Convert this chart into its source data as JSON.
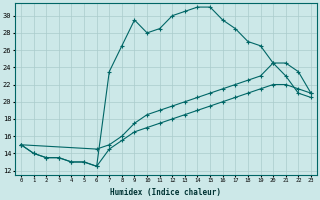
{
  "xlabel": "Humidex (Indice chaleur)",
  "bg_color": "#cce8e8",
  "grid_color": "#aacccc",
  "line_color": "#006666",
  "xlim": [
    -0.5,
    23.5
  ],
  "ylim": [
    11.5,
    31.5
  ],
  "yticks": [
    12,
    14,
    16,
    18,
    20,
    22,
    24,
    26,
    28,
    30
  ],
  "xticks": [
    0,
    1,
    2,
    3,
    4,
    5,
    6,
    7,
    8,
    9,
    10,
    11,
    12,
    13,
    14,
    15,
    16,
    17,
    18,
    19,
    20,
    21,
    22,
    23
  ],
  "line1_x": [
    0,
    1,
    2,
    3,
    4,
    5,
    6,
    7,
    8,
    9,
    10,
    11,
    12,
    13,
    14,
    15,
    16,
    17,
    18,
    19,
    20,
    21,
    22,
    23
  ],
  "line1_y": [
    15.0,
    14.0,
    13.5,
    13.5,
    13.0,
    13.0,
    12.5,
    23.5,
    26.5,
    29.5,
    28.0,
    28.5,
    30.0,
    30.5,
    31.0,
    31.0,
    29.5,
    28.5,
    27.0,
    26.5,
    24.5,
    23.0,
    21.0,
    20.5
  ],
  "line2_x": [
    0,
    6,
    7,
    8,
    9,
    10,
    11,
    12,
    13,
    14,
    15,
    16,
    17,
    18,
    19,
    20,
    21,
    22,
    23
  ],
  "line2_y": [
    15.0,
    14.5,
    15.0,
    16.0,
    17.5,
    18.5,
    19.0,
    19.5,
    20.0,
    20.5,
    21.0,
    21.5,
    22.0,
    22.5,
    23.0,
    24.5,
    24.5,
    23.5,
    21.0
  ],
  "line3_x": [
    0,
    1,
    2,
    3,
    4,
    5,
    6,
    7,
    8,
    9,
    10,
    11,
    12,
    13,
    14,
    15,
    16,
    17,
    18,
    19,
    20,
    21,
    22,
    23
  ],
  "line3_y": [
    15.0,
    14.0,
    13.5,
    13.5,
    13.0,
    13.0,
    12.5,
    14.5,
    15.5,
    16.5,
    17.0,
    17.5,
    18.0,
    18.5,
    19.0,
    19.5,
    20.0,
    20.5,
    21.0,
    21.5,
    22.0,
    22.0,
    21.5,
    21.0
  ]
}
